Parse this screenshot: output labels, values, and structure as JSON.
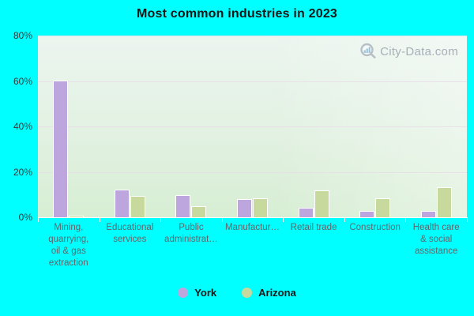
{
  "chart_data": {
    "type": "bar",
    "title": "Most common industries in 2023",
    "categories": [
      "Mining,\nquarrying,\noil & gas\nextraction",
      "Educational\nservices",
      "Public\nadministrat…",
      "Manufactur…",
      "Retail trade",
      "Construction",
      "Health care\n& social\nassistance"
    ],
    "series": [
      {
        "name": "York",
        "color": "#bda6de",
        "values": [
          60,
          12,
          9.5,
          7.5,
          4,
          2.4,
          2.4
        ]
      },
      {
        "name": "Arizona",
        "color": "#c8d99e",
        "values": [
          0.5,
          9,
          4.7,
          8,
          11.5,
          8,
          13
        ]
      }
    ],
    "ylim": [
      0,
      80
    ],
    "y_tick_labels": [
      "80%",
      "60%",
      "40%",
      "20%",
      "0%"
    ],
    "grid": true,
    "legend_position": "bottom"
  },
  "watermark": {
    "text": "City-Data.com"
  },
  "colors": {
    "background": "#00ffff",
    "bar_border": "#ffffff",
    "gridline": "#e7dde8",
    "axis_text": "#3a3a3a",
    "category_text": "#5d686c",
    "watermark_text": "#a7afb7"
  }
}
